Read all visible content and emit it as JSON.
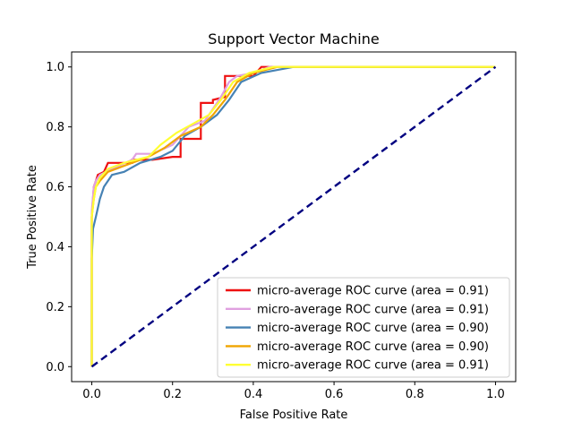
{
  "chart_data": {
    "type": "line",
    "title": "Support Vector Machine",
    "xlabel": "False Positive Rate",
    "ylabel": "True Positive Rate",
    "xlim": [
      -0.05,
      1.05
    ],
    "ylim": [
      -0.05,
      1.05
    ],
    "xticks": [
      "0.0",
      "0.2",
      "0.4",
      "0.6",
      "0.8",
      "1.0"
    ],
    "yticks": [
      "0.0",
      "0.2",
      "0.4",
      "0.6",
      "0.8",
      "1.0"
    ],
    "grid": false,
    "legend_position": "lower-right",
    "series": [
      {
        "name": "micro-average ROC curve (area = 0.91)",
        "color": "#ee1111",
        "points": [
          [
            0,
            0
          ],
          [
            0,
            0.5
          ],
          [
            0.005,
            0.6
          ],
          [
            0.01,
            0.62
          ],
          [
            0.015,
            0.64
          ],
          [
            0.03,
            0.65
          ],
          [
            0.04,
            0.68
          ],
          [
            0.1,
            0.68
          ],
          [
            0.1,
            0.69
          ],
          [
            0.15,
            0.69
          ],
          [
            0.2,
            0.7
          ],
          [
            0.22,
            0.7
          ],
          [
            0.22,
            0.76
          ],
          [
            0.27,
            0.76
          ],
          [
            0.27,
            0.88
          ],
          [
            0.3,
            0.88
          ],
          [
            0.3,
            0.89
          ],
          [
            0.33,
            0.9
          ],
          [
            0.33,
            0.97
          ],
          [
            0.4,
            0.97
          ],
          [
            0.42,
            1.0
          ],
          [
            1.0,
            1.0
          ]
        ]
      },
      {
        "name": "micro-average ROC curve (area = 0.91)",
        "color": "#e0a0e0",
        "points": [
          [
            0,
            0
          ],
          [
            0,
            0.52
          ],
          [
            0.005,
            0.6
          ],
          [
            0.01,
            0.62
          ],
          [
            0.02,
            0.64
          ],
          [
            0.05,
            0.66
          ],
          [
            0.1,
            0.69
          ],
          [
            0.11,
            0.71
          ],
          [
            0.15,
            0.71
          ],
          [
            0.2,
            0.74
          ],
          [
            0.24,
            0.8
          ],
          [
            0.28,
            0.82
          ],
          [
            0.3,
            0.86
          ],
          [
            0.32,
            0.9
          ],
          [
            0.34,
            0.95
          ],
          [
            0.36,
            0.97
          ],
          [
            0.4,
            0.98
          ],
          [
            0.44,
            1.0
          ],
          [
            1.0,
            1.0
          ]
        ]
      },
      {
        "name": "micro-average ROC curve (area = 0.90)",
        "color": "#4682b4",
        "points": [
          [
            0,
            0
          ],
          [
            0,
            0.36
          ],
          [
            0.003,
            0.46
          ],
          [
            0.01,
            0.5
          ],
          [
            0.02,
            0.56
          ],
          [
            0.03,
            0.6
          ],
          [
            0.05,
            0.64
          ],
          [
            0.08,
            0.65
          ],
          [
            0.12,
            0.68
          ],
          [
            0.17,
            0.7
          ],
          [
            0.2,
            0.72
          ],
          [
            0.23,
            0.77
          ],
          [
            0.27,
            0.8
          ],
          [
            0.31,
            0.84
          ],
          [
            0.34,
            0.89
          ],
          [
            0.37,
            0.95
          ],
          [
            0.42,
            0.98
          ],
          [
            0.5,
            1.0
          ],
          [
            1.0,
            1.0
          ]
        ]
      },
      {
        "name": "micro-average ROC curve (area = 0.90)",
        "color": "#f0a500",
        "points": [
          [
            0,
            0
          ],
          [
            0,
            0.5
          ],
          [
            0.005,
            0.56
          ],
          [
            0.01,
            0.6
          ],
          [
            0.02,
            0.62
          ],
          [
            0.04,
            0.65
          ],
          [
            0.08,
            0.67
          ],
          [
            0.14,
            0.7
          ],
          [
            0.18,
            0.73
          ],
          [
            0.22,
            0.77
          ],
          [
            0.27,
            0.8
          ],
          [
            0.3,
            0.84
          ],
          [
            0.33,
            0.89
          ],
          [
            0.36,
            0.95
          ],
          [
            0.4,
            0.98
          ],
          [
            0.46,
            1.0
          ],
          [
            1.0,
            1.0
          ]
        ]
      },
      {
        "name": "micro-average ROC curve (area = 0.91)",
        "color": "#ffff33",
        "points": [
          [
            0,
            0
          ],
          [
            0,
            0.5
          ],
          [
            0.005,
            0.56
          ],
          [
            0.01,
            0.6
          ],
          [
            0.02,
            0.63
          ],
          [
            0.04,
            0.66
          ],
          [
            0.08,
            0.68
          ],
          [
            0.14,
            0.7
          ],
          [
            0.17,
            0.74
          ],
          [
            0.21,
            0.78
          ],
          [
            0.25,
            0.81
          ],
          [
            0.29,
            0.84
          ],
          [
            0.32,
            0.89
          ],
          [
            0.35,
            0.95
          ],
          [
            0.39,
            0.98
          ],
          [
            0.45,
            1.0
          ],
          [
            1.0,
            1.0
          ]
        ]
      }
    ],
    "reference_line": {
      "color": "#000080",
      "style": "dashed",
      "points": [
        [
          0,
          0
        ],
        [
          1,
          1
        ]
      ]
    }
  }
}
